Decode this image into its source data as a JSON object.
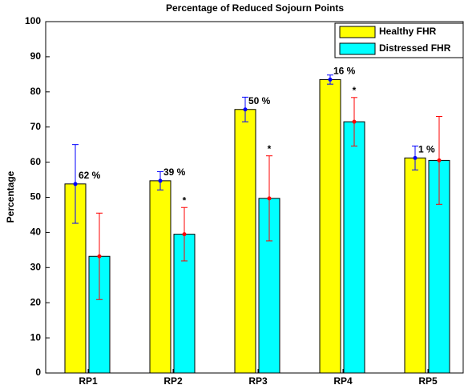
{
  "chart_data": {
    "type": "bar",
    "title": "Percentage of Reduced Sojourn Points",
    "ylabel": "Percentage",
    "categories": [
      "RP1",
      "RP2",
      "RP3",
      "RP4",
      "RP5"
    ],
    "series": [
      {
        "name": "Healthy FHR",
        "color": "#ffff00",
        "error_color": "#0000ff",
        "values": [
          53.8,
          54.7,
          75,
          83.5,
          61.2
        ],
        "errors": [
          11.2,
          2.6,
          3.5,
          1.3,
          3.4
        ]
      },
      {
        "name": "Distressed FHR",
        "color": "#00ffff",
        "error_color": "#ff0000",
        "values": [
          33.2,
          39.5,
          49.7,
          71.5,
          60.5
        ],
        "errors": [
          12.3,
          7.6,
          12.1,
          6.9,
          12.5
        ]
      }
    ],
    "annotations": [
      "62 %",
      "39 %",
      "50 %",
      "16 %",
      "1 %"
    ],
    "markers": [
      null,
      "*",
      "*",
      "*",
      null
    ],
    "ylim": [
      0,
      100
    ],
    "yticks": [
      0,
      10,
      20,
      30,
      40,
      50,
      60,
      70,
      80,
      90,
      100
    ],
    "grid": false,
    "legend": "upper right"
  }
}
